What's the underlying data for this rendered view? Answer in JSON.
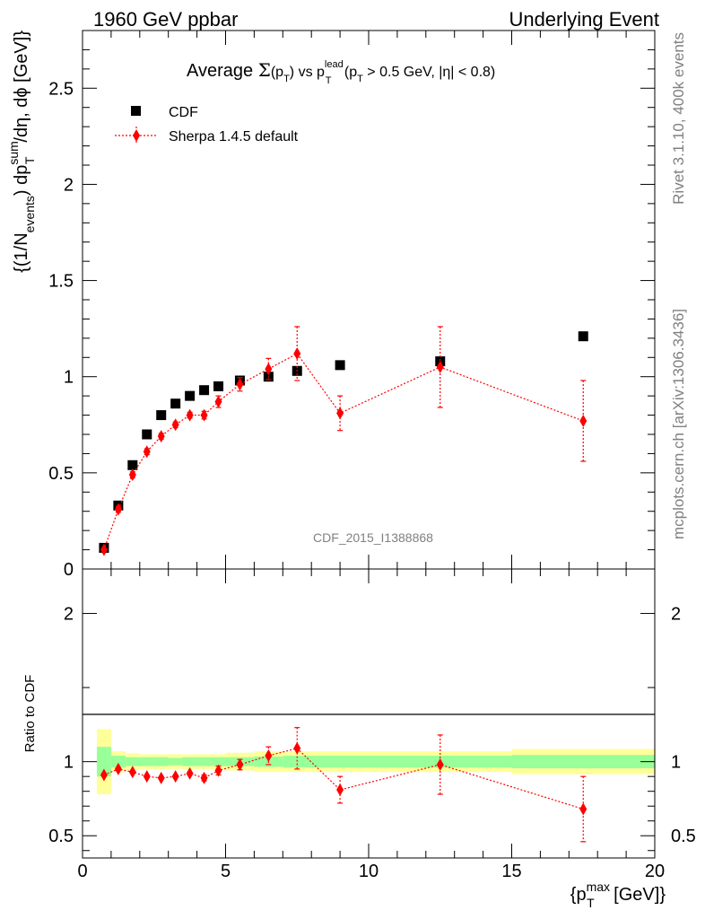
{
  "header": {
    "left": "1960 GeV ppbar",
    "right": "Underlying Event"
  },
  "side_labels": {
    "rivet": "Rivet 3.1.10,  400k events",
    "mcplots": "mcplots.cern.ch [arXiv:1306.3436]"
  },
  "chart_data": [
    {
      "type": "scatter",
      "title": {
        "prefix": "Average ",
        "sigma": "Σ",
        "pt_open": "(p",
        "pt_sub": "T",
        "pt_close": ")",
        "vs": " vs p",
        "lead_sup": "lead",
        "lead_sub": "T",
        "cut_open": " (p",
        "cut_sub": "T",
        "cut_rest": " > 0.5 GeV, |η| < 0.8)"
      },
      "watermark": "CDF_2015_I1388868",
      "ylabel": {
        "a": "{(1/N",
        "a_sub": "events",
        "b": ") dp",
        "b_sup": "sum",
        "b_sub": "T",
        "c": "/dη, dϕ [GeV]}"
      },
      "xlim": [
        0,
        20
      ],
      "ylim": [
        0,
        2.8
      ],
      "yticks": [
        {
          "v": 0,
          "label": "0"
        },
        {
          "v": 0.5,
          "label": "0.5"
        },
        {
          "v": 1,
          "label": "1"
        },
        {
          "v": 1.5,
          "label": "1.5"
        },
        {
          "v": 2,
          "label": "2"
        },
        {
          "v": 2.5,
          "label": "2.5"
        }
      ],
      "legend": [
        {
          "name": "CDF",
          "color": "#000000",
          "marker": "square"
        },
        {
          "name": "Sherpa 1.4.5 default",
          "color": "#ff0000",
          "marker": "diamond"
        }
      ],
      "series": [
        {
          "name": "CDF",
          "color": "#000000",
          "x": [
            0.75,
            1.25,
            1.75,
            2.25,
            2.75,
            3.25,
            3.75,
            4.25,
            4.75,
            5.5,
            6.5,
            7.5,
            9.0,
            12.5,
            17.5
          ],
          "y": [
            0.11,
            0.33,
            0.54,
            0.7,
            0.8,
            0.86,
            0.9,
            0.93,
            0.95,
            0.98,
            1.0,
            1.03,
            1.06,
            1.08,
            1.21
          ]
        },
        {
          "name": "Sherpa 1.4.5 default",
          "color": "#ff0000",
          "x": [
            0.75,
            1.25,
            1.75,
            2.25,
            2.75,
            3.25,
            3.75,
            4.25,
            4.75,
            5.5,
            6.5,
            7.5,
            9.0,
            12.5,
            17.5
          ],
          "y": [
            0.1,
            0.31,
            0.49,
            0.61,
            0.69,
            0.75,
            0.8,
            0.8,
            0.87,
            0.96,
            1.04,
            1.12,
            0.81,
            1.05,
            0.77
          ],
          "err": [
            0.01,
            0.015,
            0.015,
            0.015,
            0.015,
            0.015,
            0.015,
            0.02,
            0.03,
            0.035,
            0.055,
            0.14,
            0.09,
            0.21,
            0.21
          ]
        }
      ]
    },
    {
      "type": "scatter",
      "ylabel": "Ratio to CDF",
      "xlabel": {
        "open": "{p",
        "sup": "max",
        "sub": "T",
        "rest": " [GeV]}"
      },
      "xlim": [
        0,
        20
      ],
      "ylim": [
        0.35,
        2.3
      ],
      "xticks": [
        {
          "v": 0,
          "label": "0"
        },
        {
          "v": 5,
          "label": "5"
        },
        {
          "v": 10,
          "label": "10"
        },
        {
          "v": 15,
          "label": "15"
        },
        {
          "v": 20,
          "label": "20"
        }
      ],
      "yticks": [
        {
          "v": 0.5,
          "label": "0.5"
        },
        {
          "v": 1,
          "label": "1"
        },
        {
          "v": 2,
          "label": "2"
        }
      ],
      "bands": {
        "stat_color": "#99ff99",
        "total_color": "#ffff99",
        "edges": [
          0.5,
          1.0,
          1.5,
          2.0,
          2.5,
          3.0,
          3.5,
          4.0,
          4.5,
          5.0,
          6.0,
          7.0,
          8.0,
          10.0,
          15.0,
          20.0
        ],
        "stat": [
          0.1,
          0.04,
          0.03,
          0.03,
          0.03,
          0.025,
          0.03,
          0.03,
          0.03,
          0.03,
          0.035,
          0.04,
          0.04,
          0.04,
          0.045
        ],
        "total": [
          0.22,
          0.07,
          0.055,
          0.05,
          0.05,
          0.05,
          0.05,
          0.05,
          0.05,
          0.06,
          0.07,
          0.07,
          0.07,
          0.07,
          0.085
        ]
      },
      "series": [
        {
          "name": "Sherpa 1.4.5 default",
          "color": "#ff0000",
          "x": [
            0.75,
            1.25,
            1.75,
            2.25,
            2.75,
            3.25,
            3.75,
            4.25,
            4.75,
            5.5,
            6.5,
            7.5,
            9.0,
            12.5,
            17.5
          ],
          "y": [
            0.91,
            0.95,
            0.93,
            0.9,
            0.89,
            0.9,
            0.92,
            0.89,
            0.94,
            0.98,
            1.04,
            1.09,
            0.81,
            0.98,
            0.68
          ],
          "err": [
            0.015,
            0.015,
            0.015,
            0.015,
            0.015,
            0.015,
            0.015,
            0.02,
            0.03,
            0.035,
            0.06,
            0.14,
            0.09,
            0.2,
            0.22
          ]
        }
      ]
    }
  ]
}
